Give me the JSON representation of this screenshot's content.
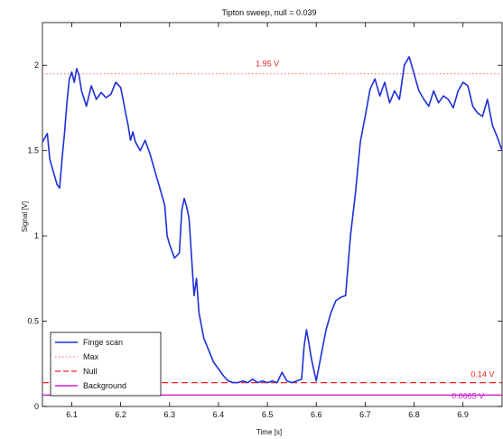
{
  "chart_data": {
    "type": "line",
    "title": "Tipton sweep, null = 0.039",
    "xlabel": "Time [s]",
    "ylabel": "Signal [V]",
    "xlim": [
      6.04,
      6.98
    ],
    "ylim": [
      0,
      2.25
    ],
    "xticks": [
      "6.1",
      "6.2",
      "6.3",
      "6.4",
      "6.5",
      "6.6",
      "6.7",
      "6.8",
      "6.9"
    ],
    "xtick_values": [
      6.1,
      6.2,
      6.3,
      6.4,
      6.5,
      6.6,
      6.7,
      6.8,
      6.9
    ],
    "yticks": [
      "0",
      "0.5",
      "1",
      "1.5",
      "2"
    ],
    "ytick_values": [
      0,
      0.5,
      1,
      1.5,
      2
    ],
    "legend_position": "bottom-left",
    "series": [
      {
        "name": "Finge scan",
        "color": "#1f2fd6",
        "style": "solid",
        "x": [
          6.04,
          6.05,
          6.055,
          6.06,
          6.065,
          6.07,
          6.075,
          6.08,
          6.085,
          6.09,
          6.095,
          6.1,
          6.105,
          6.11,
          6.115,
          6.12,
          6.13,
          6.14,
          6.15,
          6.16,
          6.17,
          6.18,
          6.19,
          6.2,
          6.205,
          6.21,
          6.215,
          6.22,
          6.225,
          6.23,
          6.24,
          6.25,
          6.26,
          6.27,
          6.28,
          6.29,
          6.295,
          6.3,
          6.31,
          6.32,
          6.325,
          6.33,
          6.335,
          6.34,
          6.35,
          6.355,
          6.36,
          6.37,
          6.38,
          6.39,
          6.4,
          6.41,
          6.42,
          6.43,
          6.44,
          6.45,
          6.46,
          6.47,
          6.48,
          6.49,
          6.5,
          6.51,
          6.52,
          6.53,
          6.54,
          6.55,
          6.56,
          6.57,
          6.575,
          6.58,
          6.585,
          6.59,
          6.6,
          6.61,
          6.62,
          6.63,
          6.64,
          6.65,
          6.66,
          6.67,
          6.68,
          6.69,
          6.7,
          6.71,
          6.72,
          6.73,
          6.74,
          6.75,
          6.76,
          6.77,
          6.78,
          6.79,
          6.8,
          6.81,
          6.82,
          6.83,
          6.84,
          6.85,
          6.86,
          6.87,
          6.88,
          6.89,
          6.9,
          6.91,
          6.92,
          6.93,
          6.94,
          6.95,
          6.96,
          6.97,
          6.98
        ],
        "y": [
          1.55,
          1.6,
          1.45,
          1.4,
          1.35,
          1.3,
          1.28,
          1.45,
          1.6,
          1.78,
          1.92,
          1.96,
          1.9,
          1.98,
          1.94,
          1.85,
          1.76,
          1.88,
          1.8,
          1.84,
          1.81,
          1.83,
          1.9,
          1.87,
          1.8,
          1.72,
          1.65,
          1.56,
          1.61,
          1.55,
          1.5,
          1.56,
          1.48,
          1.38,
          1.28,
          1.18,
          1.0,
          0.95,
          0.87,
          0.9,
          1.15,
          1.22,
          1.17,
          1.1,
          0.65,
          0.75,
          0.55,
          0.4,
          0.33,
          0.26,
          0.22,
          0.18,
          0.15,
          0.14,
          0.14,
          0.15,
          0.14,
          0.16,
          0.14,
          0.15,
          0.14,
          0.15,
          0.14,
          0.2,
          0.15,
          0.14,
          0.15,
          0.16,
          0.35,
          0.45,
          0.37,
          0.28,
          0.15,
          0.3,
          0.45,
          0.55,
          0.62,
          0.64,
          0.65,
          1.0,
          1.25,
          1.55,
          1.7,
          1.86,
          1.92,
          1.82,
          1.9,
          1.78,
          1.85,
          1.8,
          2.0,
          2.05,
          1.95,
          1.85,
          1.8,
          1.76,
          1.85,
          1.78,
          1.82,
          1.8,
          1.75,
          1.85,
          1.9,
          1.88,
          1.76,
          1.72,
          1.7,
          1.8,
          1.65,
          1.58,
          1.5
        ]
      },
      {
        "name": "Max",
        "color": "#ff7777",
        "style": "dotted",
        "x": [
          6.04,
          6.98
        ],
        "y": [
          1.95,
          1.95
        ]
      },
      {
        "name": "Null",
        "color": "#ee2222",
        "style": "dashed",
        "x": [
          6.04,
          6.98
        ],
        "y": [
          0.14,
          0.14
        ]
      },
      {
        "name": "Background",
        "color": "#cc22cc",
        "style": "solid",
        "x": [
          6.04,
          6.98
        ],
        "y": [
          0.0665,
          0.0665
        ]
      }
    ],
    "annotations": [
      {
        "text": "1.95 V",
        "x": 6.5,
        "y": 1.95,
        "color": "#ee2222"
      },
      {
        "text": "0.14 V",
        "x": 6.94,
        "y": 0.14,
        "color": "#ee2222"
      },
      {
        "text": "0.0665 V",
        "x": 6.91,
        "y": 0.0665,
        "color": "#cc22cc"
      }
    ]
  }
}
